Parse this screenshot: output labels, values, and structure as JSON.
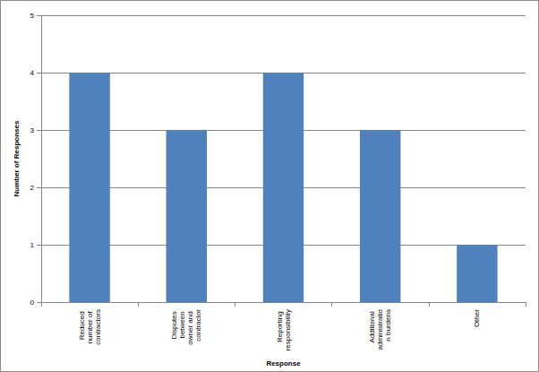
{
  "chart_data": {
    "type": "bar",
    "categories": [
      "Reduced number of contractors",
      "Disputes between owner and contractor",
      "Reporting responsibility",
      "Additional administration burdens",
      "Other"
    ],
    "values": [
      4,
      3,
      4,
      3,
      1
    ],
    "color": "#4f81bd",
    "x_label": "Response",
    "y_label": "Number of Responses",
    "ylim": [
      0,
      5
    ],
    "yticks": [
      0,
      1,
      2,
      3,
      4,
      5
    ],
    "grid": true
  }
}
